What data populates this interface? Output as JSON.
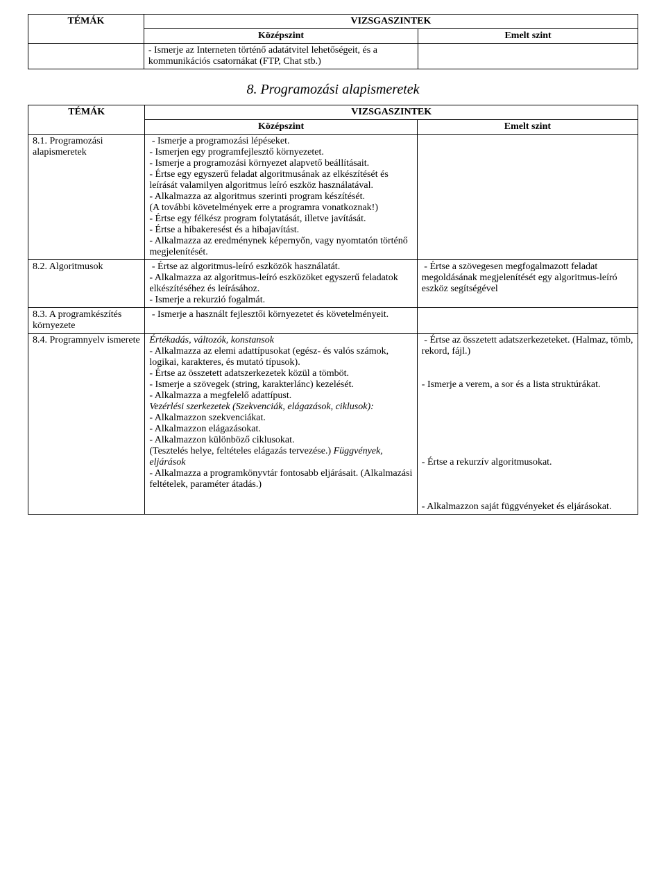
{
  "colors": {
    "bg": "#ffffff",
    "text": "#000000",
    "border": "#000000"
  },
  "table1": {
    "header_topics": "TÉMÁK",
    "header_levels": "VIZSGASZINTEK",
    "header_mid": "Középszint",
    "header_right": "Emelt szint",
    "row1_mid": "- Ismerje az Interneten történő adatátvitel lehetőségeit, és a kommunikációs csatornákat (FTP, Chat stb.)"
  },
  "section8_title": "8. Programozási alapismeretek",
  "table2": {
    "header_topics": "TÉMÁK",
    "header_levels": "VIZSGASZINTEK",
    "header_mid": "Középszint",
    "header_right": "Emelt szint",
    "rows": [
      {
        "topic": "8.1. Programozási alapismeretek",
        "mid": " - Ismerje a programozási lépéseket.\n- Ismerjen egy programfejlesztő környezetet.\n- Ismerje a programozási környezet alapvető beállításait.\n- Értse egy egyszerű feladat algoritmusának az elkészítését és leírását valamilyen algoritmus leíró eszköz használatával.\n- Alkalmazza az algoritmus szerinti program készítését.\n(A további követelmények erre a programra vonatkoznak!)\n- Értse egy félkész program folytatását, illetve javítását.\n- Értse a hibakeresést és a hibajavítást.\n- Alkalmazza az eredménynek képernyőn, vagy nyomtatón történő megjelenítését.",
        "right": ""
      },
      {
        "topic": "8.2. Algoritmusok",
        "mid": " - Értse az algoritmus-leíró eszközök használatát.\n- Alkalmazza az algoritmus-leíró eszközöket egyszerű feladatok elkészítéséhez és leírásához.\n- Ismerje a rekurzió fogalmát.",
        "right": " - Értse a szövegesen megfogalmazott feladat megoldásának megjelenítését egy algoritmus-leíró eszköz segítségével"
      },
      {
        "topic": "8.3. A programkészítés környezete",
        "mid": " - Ismerje a használt fejlesztői környezetet és követelményeit.",
        "right": ""
      }
    ],
    "row84": {
      "topic": "8.4. Programnyelv ismerete",
      "mid_italic1": "Értékadás, változók, konstansok",
      "mid_plain1": "- Alkalmazza az elemi adattípusokat (egész- és valós számok, logikai, karakteres, és mutató típusok).\n- Értse az összetett adatszerkezetek közül a tömböt.\n- Ismerje a szövegek (string, karakterlánc) kezelését.\n- Alkalmazza a megfelelő adattípust.",
      "mid_italic2": "Vezérlési szerkezetek (Szekvenciák, elágazások, ciklusok):",
      "mid_plain2": "- Alkalmazzon szekvenciákat.\n- Alkalmazzon elágazásokat.\n- Alkalmazzon különböző ciklusokat.\n(Tesztelés helye, feltételes elágazás tervezése.) ",
      "mid_italic3": "Függvények, eljárások",
      "mid_plain3": "- Alkalmazza a programkönyvtár fontosabb eljárásait. (Alkalmazási feltételek, paraméter átadás.)",
      "right": " - Értse az összetett adatszerkezeteket. (Halmaz, tömb, rekord, fájl.)\n\n\n- Ismerje a verem, a sor és a lista struktúrákat.\n\n\n\n\n\n\n- Értse a rekurzív algoritmusokat.\n\n\n\n- Alkalmazzon saját függvényeket és eljárásokat."
    }
  }
}
